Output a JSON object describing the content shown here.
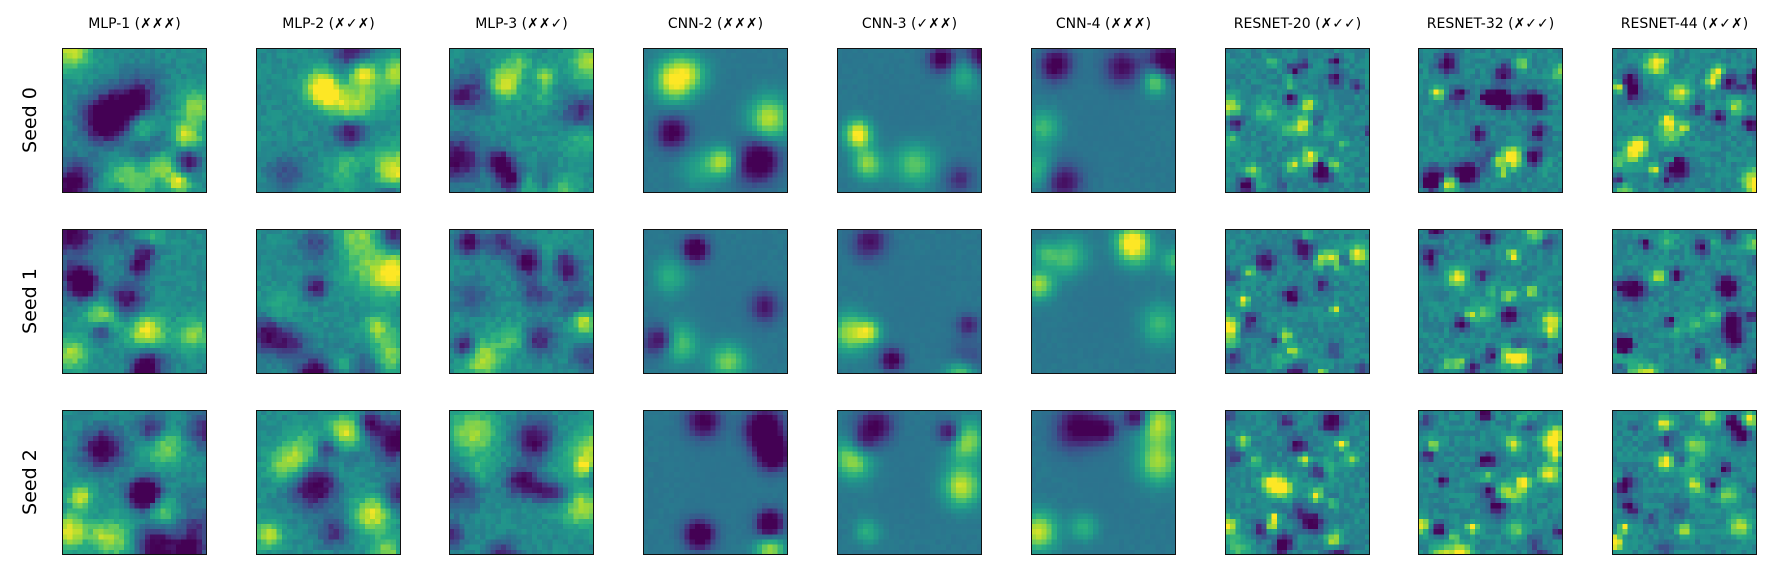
{
  "chart_data": {
    "type": "heatmap",
    "title": "",
    "colormap": "viridis",
    "grid_size": 28,
    "ticks": "none",
    "columns": [
      "MLP-1 (✗✗✗)",
      "MLP-2 (✗✓✗)",
      "MLP-3 (✗✗✓)",
      "CNN-2 (✗✗✗)",
      "CNN-3 (✓✗✗)",
      "CNN-4 (✗✗✗)",
      "RESNET-20 (✗✓✓)",
      "RESNET-32 (✗✓✓)",
      "RESNET-44 (✗✓✗)"
    ],
    "rows": [
      "Seed 0",
      "Seed 1",
      "Seed 2"
    ],
    "column_styles": [
      "mlp",
      "mlp",
      "mlp",
      "cnn",
      "cnn",
      "cnn",
      "resnet",
      "resnet",
      "resnet"
    ],
    "value_range": [
      0,
      1
    ]
  }
}
